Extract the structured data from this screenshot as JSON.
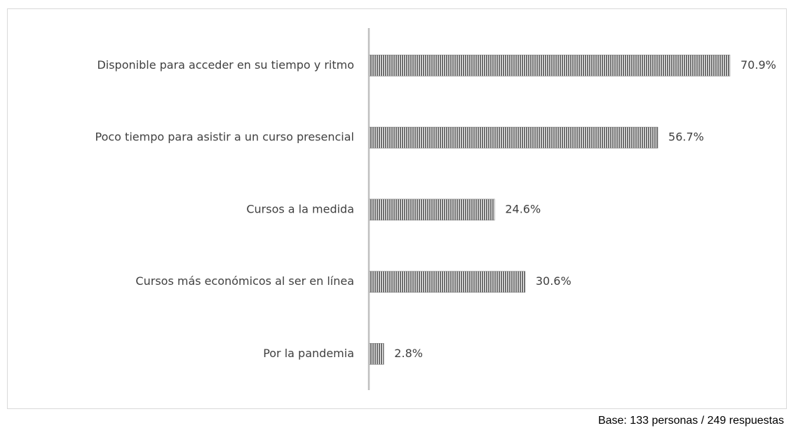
{
  "chart_data": {
    "type": "bar",
    "orientation": "horizontal",
    "categories": [
      "Disponible para acceder en su tiempo y ritmo",
      "Poco tiempo para asistir a un curso presencial",
      "Cursos a la medida",
      "Cursos más económicos al ser en línea",
      "Por la pandemia"
    ],
    "values": [
      70.9,
      56.7,
      24.6,
      30.6,
      2.8
    ],
    "value_labels": [
      "70.9%",
      "56.7%",
      "24.6%",
      "30.6%",
      "2.8%"
    ],
    "color": "#6e6e6e",
    "annotation": "Base: 133 personas / 249 respuestas"
  }
}
